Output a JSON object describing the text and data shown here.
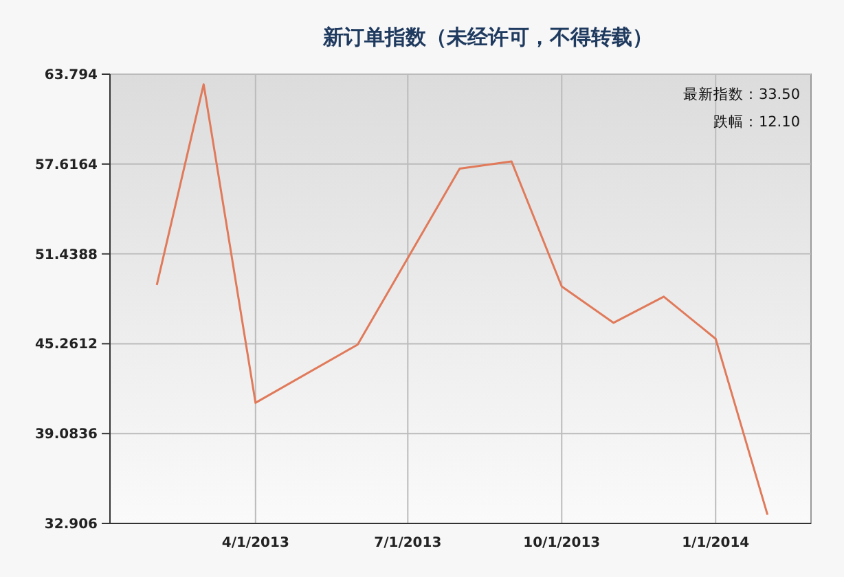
{
  "chart_data": {
    "type": "line",
    "title": "新订单指数（未经许可，不得转载）",
    "x": [
      "2013-02-01",
      "2013-03-01",
      "2013-04-01",
      "2013-06-01",
      "2013-08-01",
      "2013-09-01",
      "2013-10-01",
      "2013-11-01",
      "2013-12-01",
      "2014-01-01",
      "2014-02-01"
    ],
    "series": [
      {
        "color": "#e07a5a",
        "values": [
          49.3,
          63.1,
          41.2,
          45.2,
          57.3,
          57.8,
          49.2,
          46.7,
          48.5,
          45.6,
          33.5
        ]
      }
    ],
    "xlim": [
      "2013-01-04",
      "2014-02-27"
    ],
    "xticks": [
      {
        "value": "2013-04-01",
        "label": "4/1/2013"
      },
      {
        "value": "2013-07-01",
        "label": "7/1/2013"
      },
      {
        "value": "2013-10-01",
        "label": "10/1/2013"
      },
      {
        "value": "2014-01-01",
        "label": "1/1/2014"
      }
    ],
    "ylim": [
      32.906,
      63.794
    ],
    "yticks": [
      32.906,
      39.0836,
      45.2612,
      51.4388,
      57.6164,
      63.794
    ],
    "grid": true,
    "marker": "none",
    "line_style": "solid",
    "annotations": [
      "最新指数：33.50",
      "跌幅：12.10"
    ]
  }
}
